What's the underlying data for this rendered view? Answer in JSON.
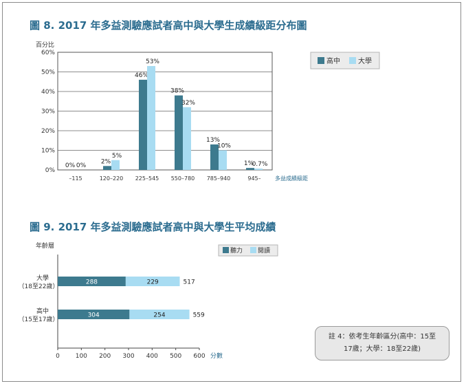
{
  "colors": {
    "high": "#3d7a8e",
    "univ": "#a8dcf2",
    "title": "#2b6c8f",
    "axis": "#333333"
  },
  "chart_data": [
    {
      "type": "bar",
      "title": "圖 8. 2017 年多益測驗應試者高中與大學生成績級距分布圖",
      "ylabel": "百分比",
      "xlabel": "多益成績級距",
      "ylim": [
        0,
        60
      ],
      "yticks": [
        "0%",
        "10%",
        "20%",
        "30%",
        "40%",
        "50%",
        "60%"
      ],
      "categories": [
        "–115",
        "120–220",
        "225–545",
        "550–780",
        "785–940",
        "945–"
      ],
      "legend_position": "top-right",
      "series": [
        {
          "name": "高中",
          "values": [
            0,
            2,
            46,
            38,
            13,
            1
          ],
          "labels": [
            "0%",
            "2%",
            "46%",
            "38%",
            "13%",
            "1%"
          ]
        },
        {
          "name": "大學",
          "values": [
            0,
            5,
            53,
            32,
            10,
            0.7
          ],
          "labels": [
            "0%",
            "5%",
            "53%",
            "32%",
            "10%",
            "0.7%"
          ]
        }
      ]
    },
    {
      "type": "bar",
      "orientation": "horizontal",
      "stacked": true,
      "title": "圖 9. 2017 年多益測驗應試者高中與大學生平均成績",
      "ylabel": "年齡層",
      "xlabel": "分數",
      "xlim": [
        0,
        600
      ],
      "xticks": [
        "0",
        "100",
        "200",
        "300",
        "400",
        "500",
        "600"
      ],
      "categories": [
        {
          "line1": "大學",
          "line2": "（18至22歲）"
        },
        {
          "line1": "高中",
          "line2": "（15至17歲）"
        }
      ],
      "legend_position": "top-right",
      "series": [
        {
          "name": "聽力",
          "values": [
            288,
            304
          ]
        },
        {
          "name": "閱讀",
          "values": [
            229,
            254
          ]
        }
      ],
      "totals": [
        517,
        559
      ]
    }
  ],
  "note": {
    "line1": "註 4：依考生年齡區分(高中：15至",
    "line2": "17歲；大學：18至22歲)"
  }
}
